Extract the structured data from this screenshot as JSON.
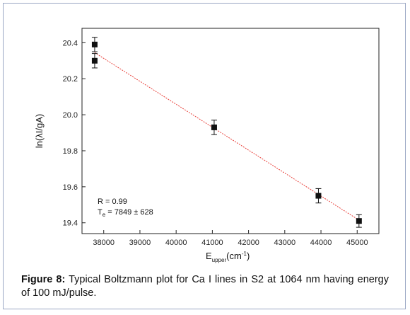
{
  "chart_data": {
    "type": "scatter",
    "title": "",
    "xlabel": "E",
    "xlabel_subscript": "upper",
    "xlabel_unit": "(cm",
    "xlabel_unit_sup": "-1",
    "xlabel_unit_close": ")",
    "ylabel": "ln(λI/gA)",
    "xlim": [
      37400,
      45600
    ],
    "ylim": [
      19.34,
      20.48
    ],
    "xticks": [
      38000,
      39000,
      40000,
      41000,
      42000,
      43000,
      44000,
      45000
    ],
    "yticks": [
      19.4,
      19.6,
      19.8,
      20.0,
      20.2,
      20.4
    ],
    "xtick_labels": [
      "38000",
      "39000",
      "40000",
      "41000",
      "42000",
      "43000",
      "44000",
      "45000"
    ],
    "ytick_labels": [
      "19.4",
      "19.6",
      "19.8",
      "20.0",
      "20.2",
      "20.4"
    ],
    "points": [
      {
        "x": 37750,
        "y": 20.39,
        "err": 0.04
      },
      {
        "x": 37750,
        "y": 20.3,
        "err": 0.04
      },
      {
        "x": 41050,
        "y": 19.93,
        "err": 0.04
      },
      {
        "x": 43930,
        "y": 19.55,
        "err": 0.04
      },
      {
        "x": 45050,
        "y": 19.41,
        "err": 0.035
      }
    ],
    "fit_line": {
      "x": [
        37750,
        45050
      ],
      "y": [
        20.345,
        19.415
      ],
      "color": "#e8403a"
    },
    "annotations": {
      "r_text": "R = 0.99",
      "te_prefix": "T",
      "te_subscript": "e",
      "te_value": " = 7849 ± 628"
    },
    "grid": false
  },
  "caption": {
    "label": "Figure 8:",
    "text": " Typical Boltzmann plot for Ca I lines in S2 at 1064 nm having energy of 100 mJ/pulse."
  }
}
